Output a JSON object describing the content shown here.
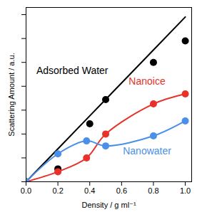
{
  "chart_data": {
    "type": "scatter",
    "x_label": "Density / g ml⁻¹",
    "y_label": "Scattering Amount / a.u.",
    "xlim": [
      0,
      1.04
    ],
    "xticks": [
      {
        "value": 0,
        "label": "0.0"
      },
      {
        "value": 0.2,
        "label": "0.2"
      },
      {
        "value": 0.4,
        "label": "0.4"
      },
      {
        "value": 0.6,
        "label": "0.6"
      },
      {
        "value": 0.8,
        "label": "0.8"
      },
      {
        "value": 1,
        "label": "1.0"
      }
    ],
    "ylim": [
      0,
      7.3
    ],
    "yticks": [
      0,
      1,
      2,
      3,
      4,
      5,
      6,
      7
    ],
    "tick_labels": "x",
    "grid": false,
    "series": [
      {
        "name": "Adsorbed Water",
        "color": "#000000",
        "marker": "circle",
        "line_style": "solid",
        "x": [
          0,
          0.2,
          0.4,
          0.5,
          0.8,
          1.0
        ],
        "values": [
          0,
          0.54,
          2.43,
          3.44,
          5.0,
          5.9
        ],
        "fit": [
          0,
          1.38,
          2.76,
          3.45,
          5.52,
          6.9
        ],
        "label_x": 0.29,
        "label_y": 4.64
      },
      {
        "name": "Nanoice",
        "color": "#e8312a",
        "marker": "circle",
        "line_style": "solid",
        "x": [
          0,
          0.2,
          0.38,
          0.5,
          0.8,
          1.0
        ],
        "values": [
          0,
          0.42,
          1.0,
          2.0,
          3.26,
          3.68
        ],
        "label_x": 0.76,
        "label_y": 4.19
      },
      {
        "name": "Nanowater",
        "color": "#4a8fe8",
        "marker": "circle",
        "line_style": "solid",
        "x": [
          0,
          0.2,
          0.38,
          0.5,
          0.8,
          1.0
        ],
        "values": [
          0,
          1.17,
          1.71,
          1.5,
          1.92,
          2.55
        ],
        "label_x": 0.76,
        "label_y": 1.29
      }
    ]
  }
}
